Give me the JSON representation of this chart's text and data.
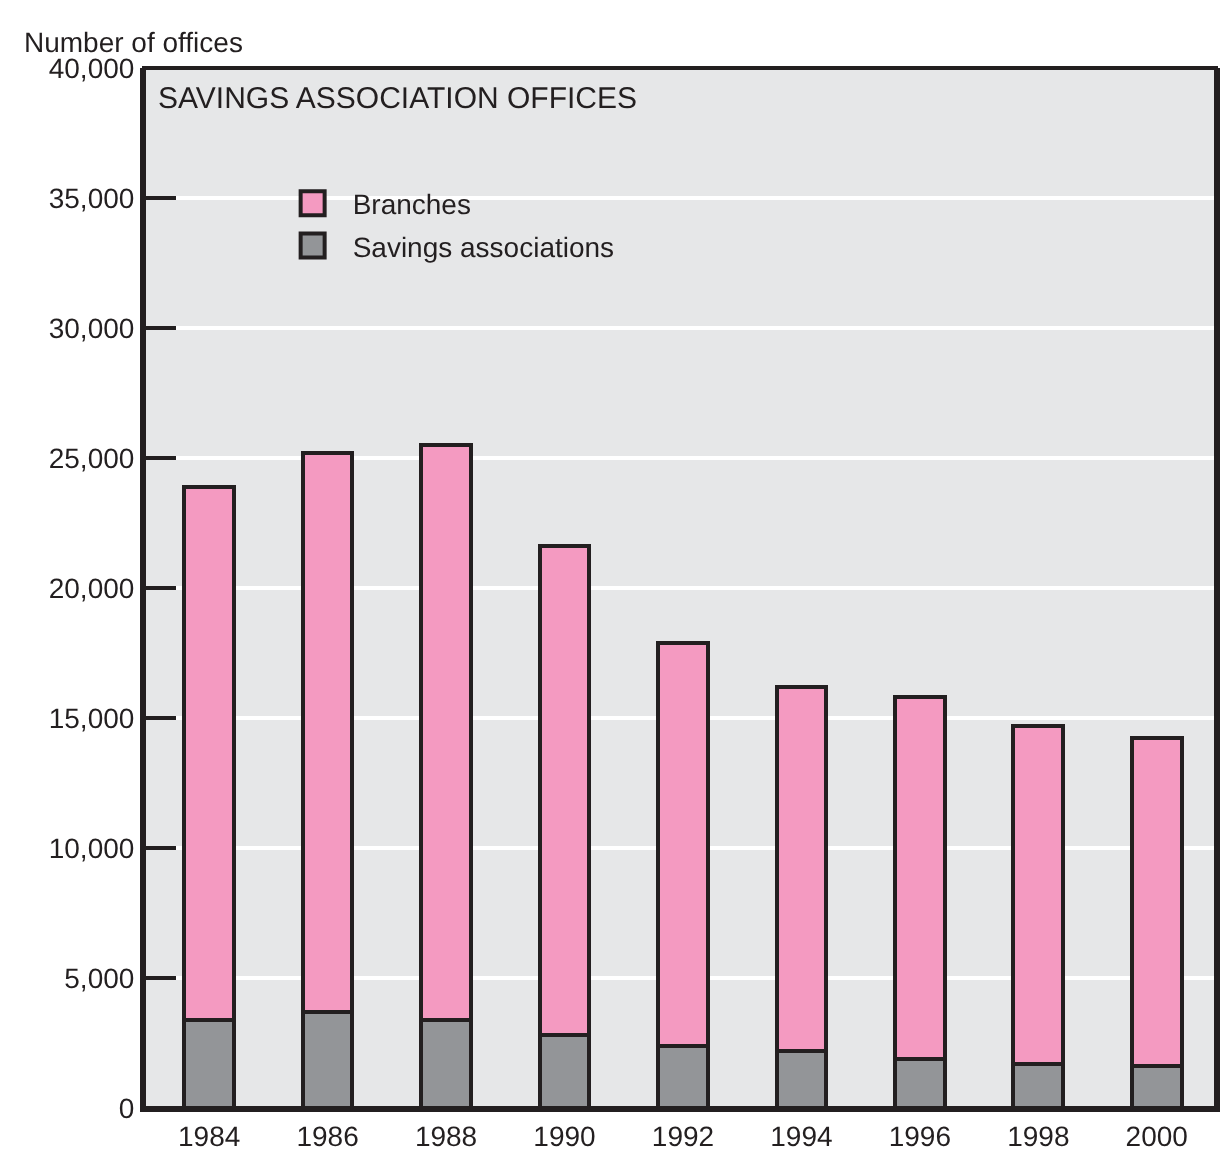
{
  "chart_data": {
    "type": "bar",
    "title": "SAVINGS ASSOCIATION OFFICES",
    "ylabel": "Number of offices",
    "categories": [
      "1984",
      "1986",
      "1988",
      "1990",
      "1992",
      "1994",
      "1996",
      "1998",
      "2000"
    ],
    "stacked": true,
    "series": [
      {
        "name": "Savings associations",
        "color": "#939598",
        "values": [
          3400,
          3700,
          3400,
          2800,
          2400,
          2200,
          1900,
          1700,
          1600
        ]
      },
      {
        "name": "Branches",
        "color": "#f49ac1",
        "values": [
          20500,
          21500,
          22100,
          18800,
          15500,
          14000,
          13900,
          13000,
          12650
        ]
      }
    ],
    "ylim": [
      0,
      40000
    ],
    "yticks": [
      {
        "value": 0,
        "label": "0"
      },
      {
        "value": 5000,
        "label": "5,000"
      },
      {
        "value": 10000,
        "label": "10,000"
      },
      {
        "value": 15000,
        "label": "15,000"
      },
      {
        "value": 20000,
        "label": "20,000"
      },
      {
        "value": 25000,
        "label": "25,000"
      },
      {
        "value": 30000,
        "label": "30,000"
      },
      {
        "value": 35000,
        "label": "35,000"
      },
      {
        "value": 40000,
        "label": "40,000"
      }
    ],
    "grid": "y",
    "legend": "top left"
  }
}
